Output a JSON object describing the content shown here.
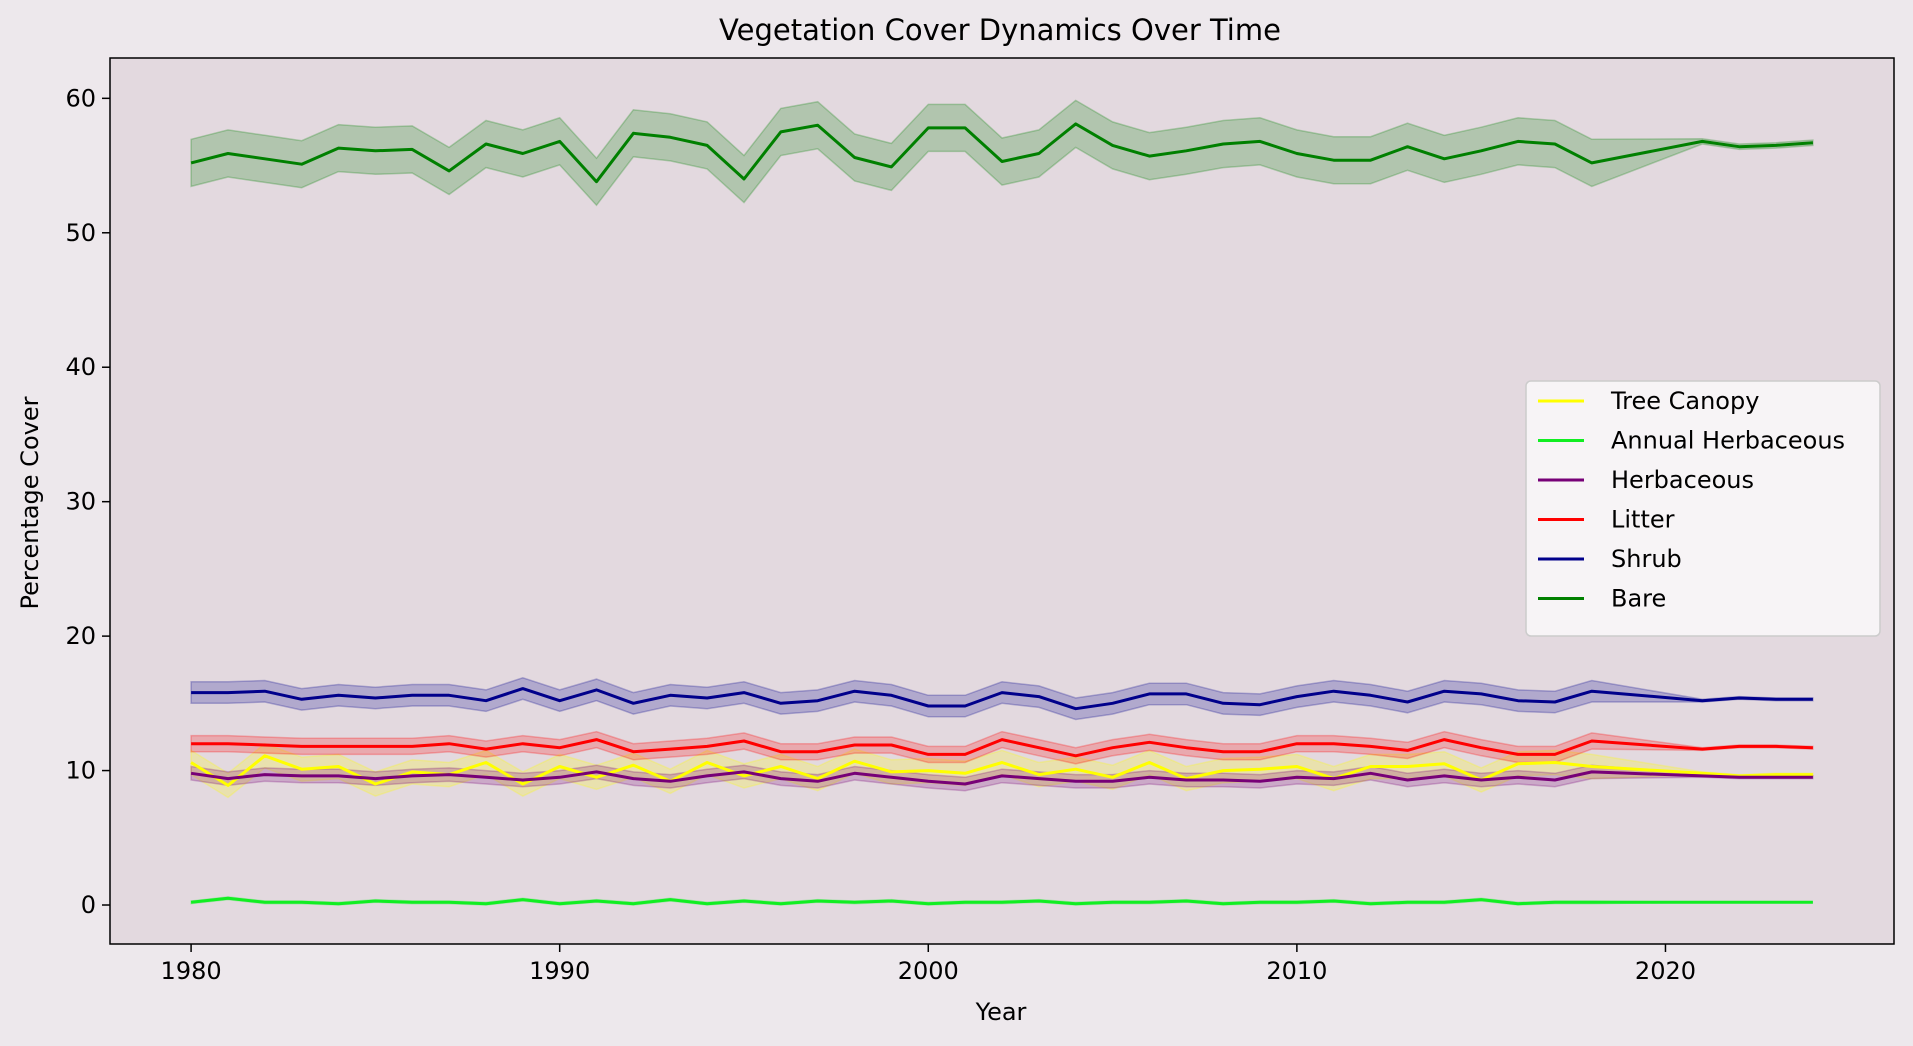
{
  "chart_data": {
    "type": "line",
    "title": "Vegetation Cover Dynamics Over Time",
    "xlabel": "Year",
    "ylabel": "Percentage Cover",
    "xlim": [
      1977.8,
      2026.2
    ],
    "ylim": [
      -2.9,
      63.0
    ],
    "xticks": [
      1980,
      1990,
      2000,
      2010,
      2020
    ],
    "yticks": [
      0,
      10,
      20,
      30,
      40,
      50,
      60
    ],
    "grid": false,
    "legend_position": "center-right",
    "background": "#e3d9df",
    "x": [
      1980,
      1981,
      1982,
      1983,
      1984,
      1985,
      1986,
      1987,
      1988,
      1989,
      1990,
      1991,
      1992,
      1993,
      1994,
      1995,
      1996,
      1997,
      1998,
      1999,
      2000,
      2001,
      2002,
      2003,
      2004,
      2005,
      2006,
      2007,
      2008,
      2009,
      2010,
      2011,
      2012,
      2013,
      2014,
      2015,
      2016,
      2017,
      2018,
      2021,
      2022,
      2023,
      2024
    ],
    "series": [
      {
        "name": "Tree Canopy",
        "color": "#ffff00",
        "values": [
          10.6,
          8.9,
          11.1,
          10.1,
          10.3,
          9.0,
          9.9,
          9.7,
          10.6,
          9.0,
          10.3,
          9.5,
          10.4,
          9.2,
          10.6,
          9.6,
          10.3,
          9.4,
          10.7,
          9.9,
          10.0,
          9.8,
          10.6,
          9.7,
          10.1,
          9.5,
          10.6,
          9.4,
          10.0,
          10.1,
          10.3,
          9.4,
          10.3,
          10.3,
          10.5,
          9.3,
          10.5,
          10.6,
          10.3,
          9.8,
          9.6,
          9.7,
          9.7
        ],
        "band": [
          0.9,
          0.9,
          0.9,
          0.9,
          0.9,
          0.9,
          0.9,
          0.9,
          0.9,
          0.9,
          0.9,
          0.9,
          0.9,
          0.9,
          0.9,
          0.9,
          0.9,
          0.9,
          0.9,
          0.9,
          0.9,
          0.9,
          0.9,
          0.9,
          0.9,
          0.9,
          0.9,
          0.9,
          0.9,
          0.9,
          0.9,
          0.9,
          0.9,
          0.9,
          0.9,
          0.9,
          0.9,
          0.9,
          0.9,
          0.1,
          0.1,
          0.1,
          0.1
        ]
      },
      {
        "name": "Annual Herbaceous",
        "color": "#11ee22",
        "values": [
          0.2,
          0.5,
          0.2,
          0.2,
          0.1,
          0.3,
          0.2,
          0.2,
          0.1,
          0.4,
          0.1,
          0.3,
          0.1,
          0.4,
          0.1,
          0.3,
          0.1,
          0.3,
          0.2,
          0.3,
          0.1,
          0.2,
          0.2,
          0.3,
          0.1,
          0.2,
          0.2,
          0.3,
          0.1,
          0.2,
          0.2,
          0.3,
          0.1,
          0.2,
          0.2,
          0.4,
          0.1,
          0.2,
          0.2,
          0.2,
          0.2,
          0.2,
          0.2
        ],
        "band": [
          0.1,
          0.1,
          0.1,
          0.1,
          0.1,
          0.1,
          0.1,
          0.1,
          0.1,
          0.1,
          0.1,
          0.1,
          0.1,
          0.1,
          0.1,
          0.1,
          0.1,
          0.1,
          0.1,
          0.1,
          0.1,
          0.1,
          0.1,
          0.1,
          0.1,
          0.1,
          0.1,
          0.1,
          0.1,
          0.1,
          0.1,
          0.1,
          0.1,
          0.1,
          0.1,
          0.1,
          0.1,
          0.1,
          0.1,
          0.0,
          0.0,
          0.0,
          0.0
        ]
      },
      {
        "name": "Herbaceous",
        "color": "#770077",
        "values": [
          9.8,
          9.4,
          9.7,
          9.6,
          9.6,
          9.4,
          9.6,
          9.7,
          9.5,
          9.3,
          9.5,
          9.9,
          9.4,
          9.2,
          9.6,
          9.9,
          9.4,
          9.2,
          9.8,
          9.5,
          9.2,
          9.0,
          9.6,
          9.4,
          9.2,
          9.2,
          9.5,
          9.3,
          9.3,
          9.2,
          9.5,
          9.4,
          9.8,
          9.3,
          9.6,
          9.3,
          9.5,
          9.3,
          9.9,
          9.6,
          9.5,
          9.5,
          9.5
        ],
        "band": [
          0.5,
          0.5,
          0.5,
          0.5,
          0.5,
          0.5,
          0.5,
          0.5,
          0.5,
          0.5,
          0.5,
          0.5,
          0.5,
          0.5,
          0.5,
          0.5,
          0.5,
          0.5,
          0.5,
          0.5,
          0.5,
          0.5,
          0.5,
          0.5,
          0.5,
          0.5,
          0.5,
          0.5,
          0.5,
          0.5,
          0.5,
          0.5,
          0.5,
          0.5,
          0.5,
          0.5,
          0.5,
          0.5,
          0.5,
          0.1,
          0.1,
          0.1,
          0.1
        ]
      },
      {
        "name": "Litter",
        "color": "#ff0000",
        "values": [
          12.0,
          12.0,
          11.9,
          11.8,
          11.8,
          11.8,
          11.8,
          12.0,
          11.6,
          12.0,
          11.7,
          12.3,
          11.4,
          11.6,
          11.8,
          12.2,
          11.4,
          11.4,
          11.9,
          11.9,
          11.2,
          11.2,
          12.3,
          11.7,
          11.1,
          11.7,
          12.1,
          11.7,
          11.4,
          11.4,
          12.0,
          12.0,
          11.8,
          11.5,
          12.3,
          11.7,
          11.2,
          11.2,
          12.2,
          11.6,
          11.8,
          11.8,
          11.7
        ],
        "band": [
          0.6,
          0.6,
          0.6,
          0.6,
          0.6,
          0.6,
          0.6,
          0.6,
          0.6,
          0.6,
          0.6,
          0.6,
          0.6,
          0.6,
          0.6,
          0.6,
          0.6,
          0.6,
          0.6,
          0.6,
          0.6,
          0.6,
          0.6,
          0.6,
          0.6,
          0.6,
          0.6,
          0.6,
          0.6,
          0.6,
          0.6,
          0.6,
          0.6,
          0.6,
          0.6,
          0.6,
          0.6,
          0.6,
          0.6,
          0.1,
          0.1,
          0.1,
          0.1
        ]
      },
      {
        "name": "Shrub",
        "color": "#00008b",
        "values": [
          15.8,
          15.8,
          15.9,
          15.3,
          15.6,
          15.4,
          15.6,
          15.6,
          15.2,
          16.1,
          15.2,
          16.0,
          15.0,
          15.6,
          15.4,
          15.8,
          15.0,
          15.2,
          15.9,
          15.6,
          14.8,
          14.8,
          15.8,
          15.5,
          14.6,
          15.0,
          15.7,
          15.7,
          15.0,
          14.9,
          15.5,
          15.9,
          15.6,
          15.1,
          15.9,
          15.7,
          15.2,
          15.1,
          15.9,
          15.2,
          15.4,
          15.3,
          15.3
        ],
        "band": [
          0.8,
          0.8,
          0.8,
          0.8,
          0.8,
          0.8,
          0.8,
          0.8,
          0.8,
          0.8,
          0.8,
          0.8,
          0.8,
          0.8,
          0.8,
          0.8,
          0.8,
          0.8,
          0.8,
          0.8,
          0.8,
          0.8,
          0.8,
          0.8,
          0.8,
          0.8,
          0.8,
          0.8,
          0.8,
          0.8,
          0.8,
          0.8,
          0.8,
          0.8,
          0.8,
          0.8,
          0.8,
          0.8,
          0.8,
          0.1,
          0.1,
          0.1,
          0.1
        ]
      },
      {
        "name": "Bare",
        "color": "#008000",
        "values": [
          55.2,
          55.9,
          55.5,
          55.1,
          56.3,
          56.1,
          56.2,
          54.6,
          56.6,
          55.9,
          56.8,
          53.8,
          57.4,
          57.1,
          56.5,
          54.0,
          57.5,
          58.0,
          55.6,
          54.9,
          57.8,
          57.8,
          55.3,
          55.9,
          58.1,
          56.5,
          55.7,
          56.1,
          56.6,
          56.8,
          55.9,
          55.4,
          55.4,
          56.4,
          55.5,
          56.1,
          56.8,
          56.6,
          55.2,
          56.8,
          56.4,
          56.5,
          56.7
        ],
        "band": [
          1.75,
          1.75,
          1.75,
          1.75,
          1.75,
          1.75,
          1.75,
          1.75,
          1.75,
          1.75,
          1.75,
          1.75,
          1.75,
          1.75,
          1.75,
          1.75,
          1.75,
          1.75,
          1.75,
          1.75,
          1.75,
          1.75,
          1.75,
          1.75,
          1.75,
          1.75,
          1.75,
          1.75,
          1.75,
          1.75,
          1.75,
          1.75,
          1.75,
          1.75,
          1.75,
          1.75,
          1.75,
          1.75,
          1.75,
          0.2,
          0.2,
          0.2,
          0.2
        ]
      }
    ]
  }
}
